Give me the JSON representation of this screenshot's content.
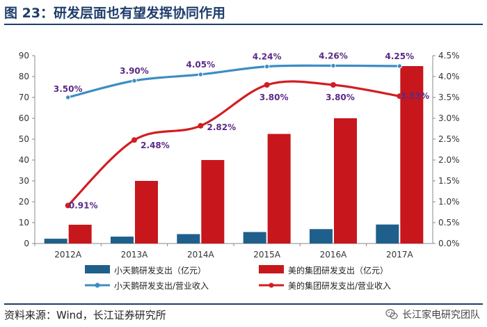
{
  "figure_title": "图 23：研发层面也有望发挥协同作用",
  "source": "资料来源：Wind，长江证券研究所",
  "brand": "长江家电研究团队",
  "colors": {
    "blue_bar": "#1f5f8b",
    "red_bar": "#c8161d",
    "blue_line": "#3c8dc4",
    "red_line": "#d31d22",
    "label_text": "#5b2a86",
    "axis": "#888888",
    "title": "#1f3d6b"
  },
  "chart_data": {
    "type": "bar",
    "categories": [
      "2012A",
      "2013A",
      "2014A",
      "2015A",
      "2016A",
      "2017A"
    ],
    "series": [
      {
        "name": "小天鹅研发支出（亿元）",
        "kind": "bar",
        "axis": "left",
        "values": [
          2.3,
          3.3,
          4.5,
          5.5,
          6.9,
          9.1
        ],
        "color": "#1f5f8b"
      },
      {
        "name": "美的集团研发支出（亿元）",
        "kind": "bar",
        "axis": "left",
        "values": [
          9,
          30,
          40,
          52.5,
          60,
          85
        ],
        "color": "#c8161d"
      },
      {
        "name": "小天鹅研发支出/营业收入",
        "kind": "line",
        "axis": "right",
        "values": [
          3.5,
          3.9,
          4.05,
          4.24,
          4.26,
          4.25
        ],
        "color": "#3c8dc4",
        "labels": [
          "3.50%",
          "3.90%",
          "4.05%",
          "4.24%",
          "4.26%",
          "4.25%"
        ]
      },
      {
        "name": "美的集团研发支出/营业收入",
        "kind": "line",
        "axis": "right",
        "values": [
          0.91,
          2.48,
          2.82,
          3.8,
          3.8,
          3.53
        ],
        "color": "#d31d22",
        "labels": [
          "0.91%",
          "2.48%",
          "2.82%",
          "3.80%",
          "3.80%",
          "3.53%"
        ]
      }
    ],
    "y_left": {
      "ylim": [
        0,
        90
      ],
      "ticks": [
        "0",
        "10",
        "20",
        "30",
        "40",
        "50",
        "60",
        "70",
        "80",
        "90"
      ]
    },
    "y_right": {
      "ylim": [
        0,
        4.5
      ],
      "ticks": [
        "0.0%",
        "0.5%",
        "1.0%",
        "1.5%",
        "2.0%",
        "2.5%",
        "3.0%",
        "3.5%",
        "4.0%",
        "4.5%"
      ]
    },
    "grid": false,
    "legend_position": "bottom"
  }
}
